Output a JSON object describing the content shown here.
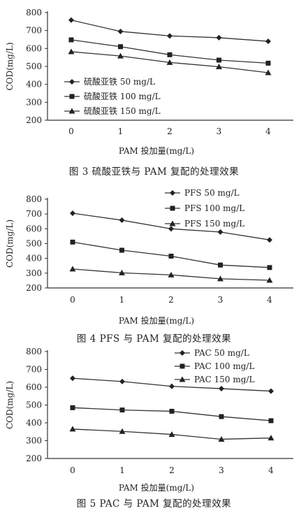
{
  "chart_data": [
    {
      "type": "line",
      "x": [
        0,
        1,
        2,
        3,
        4
      ],
      "xlabel": "PAM 投加量(mg/L)",
      "ylabel": "COD(mg/L)",
      "ylim": [
        200,
        800
      ],
      "yticks": [
        200,
        300,
        400,
        500,
        600,
        700,
        800
      ],
      "grid": false,
      "legend_position": "left",
      "series": [
        {
          "name": "硫酸亚铁 50 mg/L",
          "marker": "diamond",
          "values": [
            758,
            695,
            670,
            660,
            640
          ]
        },
        {
          "name": "硫酸亚铁 100 mg/L",
          "marker": "square",
          "values": [
            648,
            610,
            565,
            535,
            518
          ]
        },
        {
          "name": "硫酸亚铁 150 mg/L",
          "marker": "triangle",
          "values": [
            582,
            558,
            522,
            498,
            465
          ]
        }
      ],
      "caption": "图 3   硫酸亚铁与 PAM 复配的处理效果"
    },
    {
      "type": "line",
      "x": [
        0,
        1,
        2,
        3,
        4
      ],
      "xlabel": "PAM 投加量(mg/L)",
      "ylabel": "COD(mg/L)",
      "ylim": [
        200,
        800
      ],
      "yticks": [
        200,
        300,
        400,
        500,
        600,
        700,
        800
      ],
      "grid": false,
      "legend_position": "top-right",
      "series": [
        {
          "name": "PFS 50 mg/L",
          "marker": "diamond",
          "values": [
            705,
            658,
            600,
            578,
            525
          ]
        },
        {
          "name": "PFS 100 mg/L",
          "marker": "square",
          "values": [
            510,
            455,
            415,
            355,
            338
          ]
        },
        {
          "name": "PFS 150 mg/L",
          "marker": "triangle",
          "values": [
            328,
            302,
            288,
            262,
            252
          ]
        }
      ],
      "caption": "图 4   PFS 与 PAM 复配的处理效果"
    },
    {
      "type": "line",
      "x": [
        0,
        1,
        2,
        3,
        4
      ],
      "xlabel": "PAM 投加量(mg/L)",
      "ylabel": "COD(mg/L)",
      "ylim": [
        200,
        800
      ],
      "yticks": [
        200,
        300,
        400,
        500,
        600,
        700,
        800
      ],
      "grid": false,
      "legend_position": "top-right",
      "series": [
        {
          "name": "PAC 50 mg/L",
          "marker": "diamond",
          "values": [
            650,
            632,
            605,
            592,
            578
          ]
        },
        {
          "name": "PAC 100 mg/L",
          "marker": "square",
          "values": [
            485,
            472,
            465,
            435,
            412
          ]
        },
        {
          "name": "PAC 150 mg/L",
          "marker": "triangle",
          "values": [
            365,
            352,
            335,
            308,
            315
          ]
        }
      ],
      "caption": "图 5   PAC 与 PAM 复配的处理效果"
    }
  ]
}
